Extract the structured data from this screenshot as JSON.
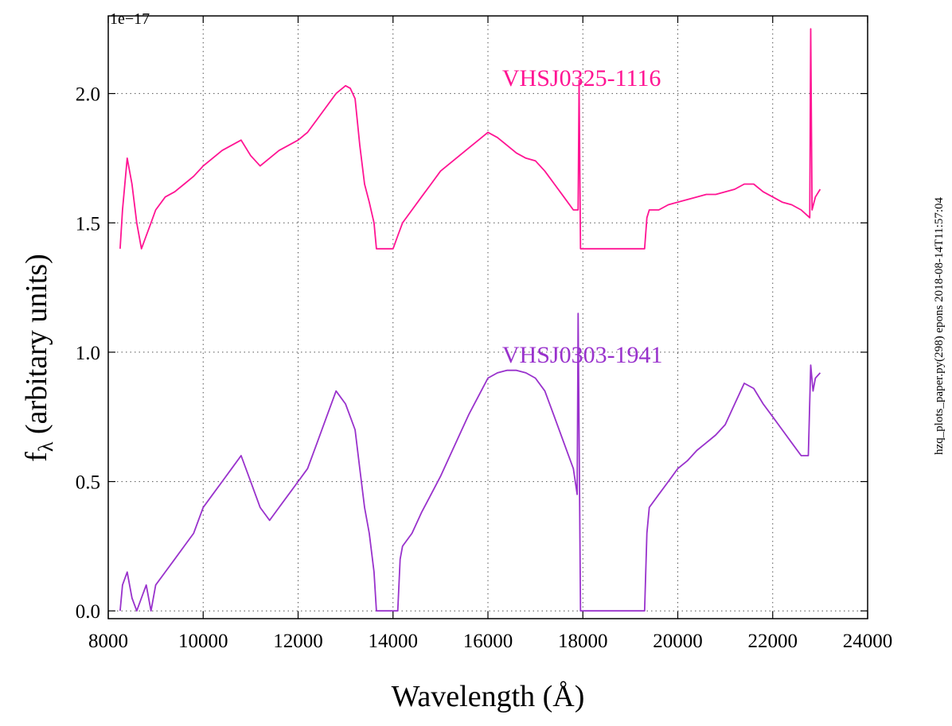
{
  "chart_data": {
    "type": "line",
    "title": "",
    "xlabel": "Wavelength (Å)",
    "ylabel_main": "f",
    "ylabel_sub": "λ",
    "ylabel_rest": " (arbitary units)",
    "y_offset_label": "1e−17",
    "xlim": [
      8000,
      24000
    ],
    "ylim": [
      -0.03,
      2.3
    ],
    "grid": true,
    "x_ticks": [
      8000,
      10000,
      12000,
      14000,
      16000,
      18000,
      20000,
      22000,
      24000
    ],
    "x_tick_labels": [
      "8000",
      "10000",
      "12000",
      "14000",
      "16000",
      "18000",
      "20000",
      "22000",
      "24000"
    ],
    "y_ticks": [
      0.0,
      0.5,
      1.0,
      1.5,
      2.0
    ],
    "y_tick_labels": [
      "0.0",
      "0.5",
      "1.0",
      "1.5",
      "2.0"
    ],
    "side_annotation": "hzq_plots_paper.py(298) epons 2018-08-14T11:57:04",
    "series": [
      {
        "name": "VHSJ0325-1116",
        "color": "#ff1493",
        "label_x": 16300,
        "label_y": 2.03,
        "x": [
          8250,
          8300,
          8400,
          8500,
          8600,
          8700,
          8800,
          8900,
          9000,
          9200,
          9400,
          9600,
          9800,
          10000,
          10200,
          10400,
          10600,
          10800,
          11000,
          11200,
          11400,
          11600,
          11800,
          12000,
          12200,
          12400,
          12600,
          12800,
          13000,
          13100,
          13200,
          13300,
          13400,
          13500,
          13600,
          13650,
          14000,
          14100,
          14200,
          14400,
          14600,
          14800,
          15000,
          15200,
          15400,
          15600,
          15800,
          16000,
          16200,
          16400,
          16600,
          16800,
          17000,
          17200,
          17400,
          17600,
          17800,
          17900,
          17920,
          17950,
          18000,
          19300,
          19350,
          19400,
          19600,
          19800,
          20000,
          20200,
          20400,
          20600,
          20800,
          21000,
          21200,
          21400,
          21600,
          21800,
          22000,
          22200,
          22400,
          22600,
          22780,
          22800,
          22830,
          22900,
          23000
        ],
        "y": [
          1.4,
          1.55,
          1.75,
          1.65,
          1.5,
          1.4,
          1.45,
          1.5,
          1.55,
          1.6,
          1.62,
          1.65,
          1.68,
          1.72,
          1.75,
          1.78,
          1.8,
          1.82,
          1.76,
          1.72,
          1.75,
          1.78,
          1.8,
          1.82,
          1.85,
          1.9,
          1.95,
          2.0,
          2.03,
          2.02,
          1.98,
          1.8,
          1.65,
          1.58,
          1.5,
          1.4,
          1.4,
          1.45,
          1.5,
          1.55,
          1.6,
          1.65,
          1.7,
          1.73,
          1.76,
          1.79,
          1.82,
          1.85,
          1.83,
          1.8,
          1.77,
          1.75,
          1.74,
          1.7,
          1.65,
          1.6,
          1.55,
          1.55,
          2.05,
          1.4,
          1.4,
          1.4,
          1.52,
          1.55,
          1.55,
          1.57,
          1.58,
          1.59,
          1.6,
          1.61,
          1.61,
          1.62,
          1.63,
          1.65,
          1.65,
          1.62,
          1.6,
          1.58,
          1.57,
          1.55,
          1.52,
          2.25,
          1.55,
          1.6,
          1.63
        ]
      },
      {
        "name": "VHSJ0303-1941",
        "color": "#9932cc",
        "label_x": 16300,
        "label_y": 0.96,
        "x": [
          8250,
          8300,
          8400,
          8500,
          8600,
          8700,
          8800,
          8900,
          9000,
          9200,
          9400,
          9600,
          9800,
          10000,
          10200,
          10400,
          10600,
          10800,
          11000,
          11200,
          11400,
          11600,
          11800,
          12000,
          12200,
          12400,
          12600,
          12800,
          13000,
          13100,
          13200,
          13300,
          13400,
          13500,
          13600,
          13650,
          14100,
          14150,
          14200,
          14400,
          14600,
          14800,
          15000,
          15200,
          15400,
          15600,
          15800,
          16000,
          16200,
          16400,
          16600,
          16800,
          17000,
          17200,
          17400,
          17600,
          17800,
          17880,
          17900,
          17950,
          18000,
          19300,
          19350,
          19400,
          19600,
          19800,
          20000,
          20200,
          20400,
          20600,
          20800,
          21000,
          21200,
          21400,
          21600,
          21800,
          22000,
          22200,
          22400,
          22600,
          22750,
          22800,
          22850,
          22900,
          23000
        ],
        "y": [
          0.0,
          0.1,
          0.15,
          0.05,
          0.0,
          0.05,
          0.1,
          0.0,
          0.1,
          0.15,
          0.2,
          0.25,
          0.3,
          0.4,
          0.45,
          0.5,
          0.55,
          0.6,
          0.5,
          0.4,
          0.35,
          0.4,
          0.45,
          0.5,
          0.55,
          0.65,
          0.75,
          0.85,
          0.8,
          0.75,
          0.7,
          0.55,
          0.4,
          0.3,
          0.15,
          0.0,
          0.0,
          0.2,
          0.25,
          0.3,
          0.38,
          0.45,
          0.52,
          0.6,
          0.68,
          0.76,
          0.83,
          0.9,
          0.92,
          0.93,
          0.93,
          0.92,
          0.9,
          0.85,
          0.75,
          0.65,
          0.55,
          0.45,
          1.15,
          0.0,
          0.0,
          0.0,
          0.3,
          0.4,
          0.45,
          0.5,
          0.55,
          0.58,
          0.62,
          0.65,
          0.68,
          0.72,
          0.8,
          0.88,
          0.86,
          0.8,
          0.75,
          0.7,
          0.65,
          0.6,
          0.6,
          0.95,
          0.85,
          0.9,
          0.92
        ]
      }
    ]
  }
}
